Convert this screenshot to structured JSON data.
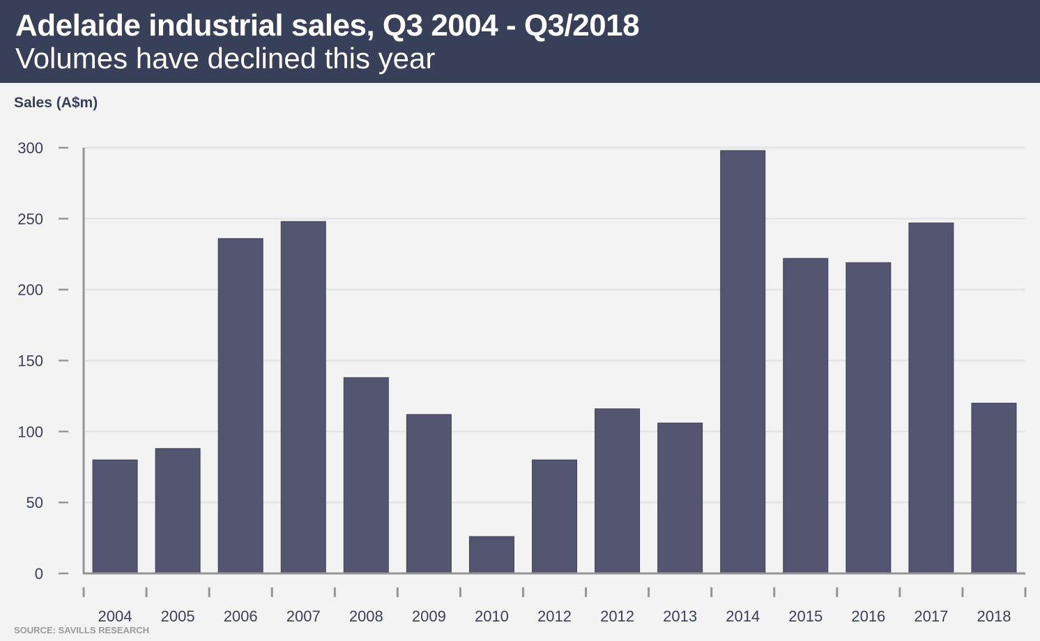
{
  "header": {
    "title": "Adelaide industrial sales, Q3 2004 - Q3/2018",
    "subtitle": "Volumes have declined this year"
  },
  "footer": {
    "source": "SOURCE: SAVILLS RESEARCH"
  },
  "colors": {
    "header_bg": "#383f58",
    "background": "#f3f3f3",
    "bar": "#535571",
    "axis": "#959595",
    "grid": "#e4e4e4",
    "text": "#3a3f55"
  },
  "chart_data": {
    "type": "bar",
    "title": "Adelaide industrial sales, Q3 2004 - Q3/2018",
    "subtitle": "Volumes have declined this year",
    "xlabel": "",
    "ylabel": "Sales (A$m)",
    "ylim": [
      0,
      300
    ],
    "yticks": [
      0,
      50,
      100,
      150,
      200,
      250,
      300
    ],
    "grid": true,
    "legend": "none",
    "categories": [
      "2004",
      "2005",
      "2006",
      "2007",
      "2008",
      "2009",
      "2010",
      "2012",
      "2012",
      "2013",
      "2014",
      "2015",
      "2016",
      "2017",
      "2018"
    ],
    "values": [
      80,
      88,
      236,
      248,
      138,
      112,
      26,
      80,
      116,
      106,
      298,
      222,
      219,
      247,
      120
    ],
    "source": "SOURCE: SAVILLS RESEARCH"
  }
}
